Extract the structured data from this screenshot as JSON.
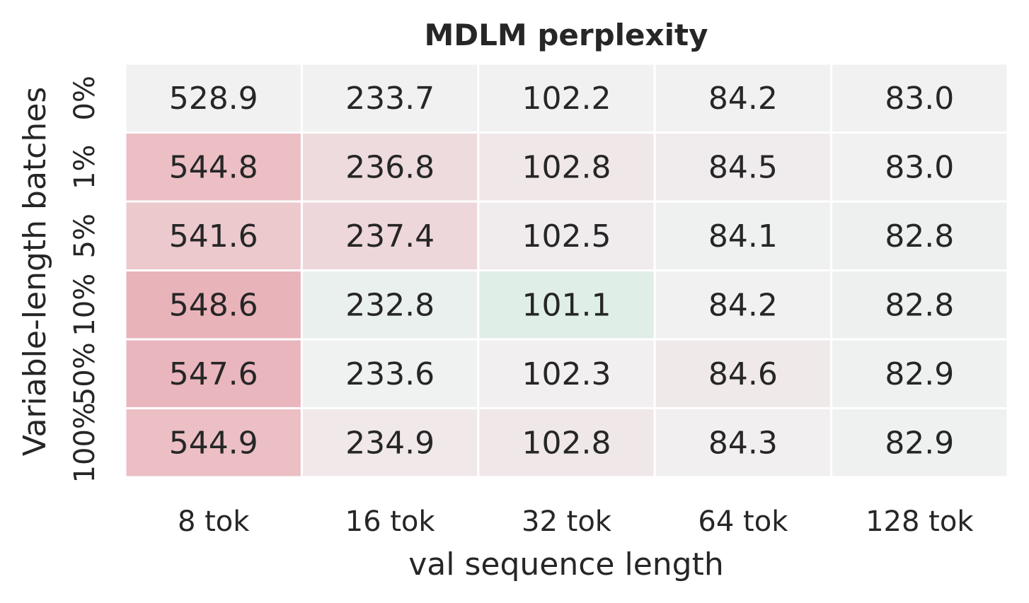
{
  "chart_data": {
    "type": "heatmap",
    "title": "MDLM perplexity",
    "xlabel": "val sequence length",
    "ylabel": "Variable-length batches",
    "x_categories": [
      "8 tok",
      "16 tok",
      "32 tok",
      "64 tok",
      "128 tok"
    ],
    "y_categories": [
      "0%",
      "1%",
      "5%",
      "10%",
      "50%",
      "100%"
    ],
    "values": [
      [
        528.9,
        233.7,
        102.2,
        84.2,
        83.0
      ],
      [
        544.8,
        236.8,
        102.8,
        84.5,
        83.0
      ],
      [
        541.6,
        237.4,
        102.5,
        84.1,
        82.8
      ],
      [
        548.6,
        232.8,
        101.1,
        84.2,
        82.8
      ],
      [
        547.6,
        233.6,
        102.3,
        84.6,
        82.9
      ],
      [
        544.9,
        234.9,
        102.8,
        84.3,
        82.9
      ]
    ],
    "colors": {
      "worse": "#e8a8b0",
      "neutral": "#f1f1f1",
      "better": "#a6e3c4",
      "text": "#262626",
      "grid": "#ffffff"
    }
  }
}
